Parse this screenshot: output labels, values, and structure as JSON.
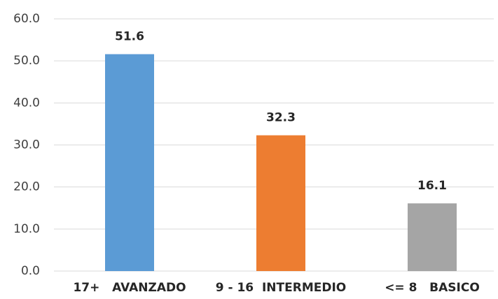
{
  "chart_data": {
    "type": "bar",
    "categories": [
      "17+   AVANZADO",
      "9 - 16  INTERMEDIO",
      "<= 8   BASICO"
    ],
    "values": [
      51.6,
      32.3,
      16.1
    ],
    "colors": [
      "#5b9bd5",
      "#ed7d31",
      "#a5a5a5"
    ],
    "ylim": [
      0,
      60
    ],
    "yticks": [
      {
        "value": 0,
        "label": "0.0"
      },
      {
        "value": 10,
        "label": "10.0"
      },
      {
        "value": 20,
        "label": "20.0"
      },
      {
        "value": 30,
        "label": "30.0"
      },
      {
        "value": 40,
        "label": "40.0"
      },
      {
        "value": 50,
        "label": "50.0"
      },
      {
        "value": 60,
        "label": "60.0"
      }
    ],
    "grid": true
  }
}
